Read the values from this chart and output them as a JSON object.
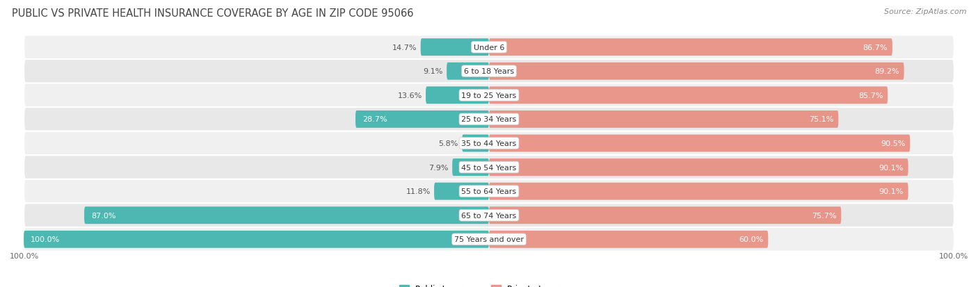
{
  "title": "Public vs Private Health Insurance Coverage by Age in Zip Code 95066",
  "source": "Source: ZipAtlas.com",
  "categories": [
    "Under 6",
    "6 to 18 Years",
    "19 to 25 Years",
    "25 to 34 Years",
    "35 to 44 Years",
    "45 to 54 Years",
    "55 to 64 Years",
    "65 to 74 Years",
    "75 Years and over"
  ],
  "public_values": [
    14.7,
    9.1,
    13.6,
    28.7,
    5.8,
    7.9,
    11.8,
    87.0,
    100.0
  ],
  "private_values": [
    86.7,
    89.2,
    85.7,
    75.1,
    90.5,
    90.1,
    90.1,
    75.7,
    60.0
  ],
  "public_color": "#4db8b2",
  "private_color": "#e8796a",
  "private_light_color": "#f0a898",
  "public_label": "Public Insurance",
  "private_label": "Private Insurance",
  "row_colors": [
    "#f0f0f0",
    "#e8e8e8"
  ],
  "title_fontsize": 10.5,
  "source_fontsize": 8,
  "label_fontsize": 8,
  "axis_label_fontsize": 8,
  "max_value": 100.0,
  "figsize": [
    14.06,
    4.14
  ],
  "dpi": 100,
  "left_axis_label": "100.0%",
  "right_axis_label": "100.0%"
}
